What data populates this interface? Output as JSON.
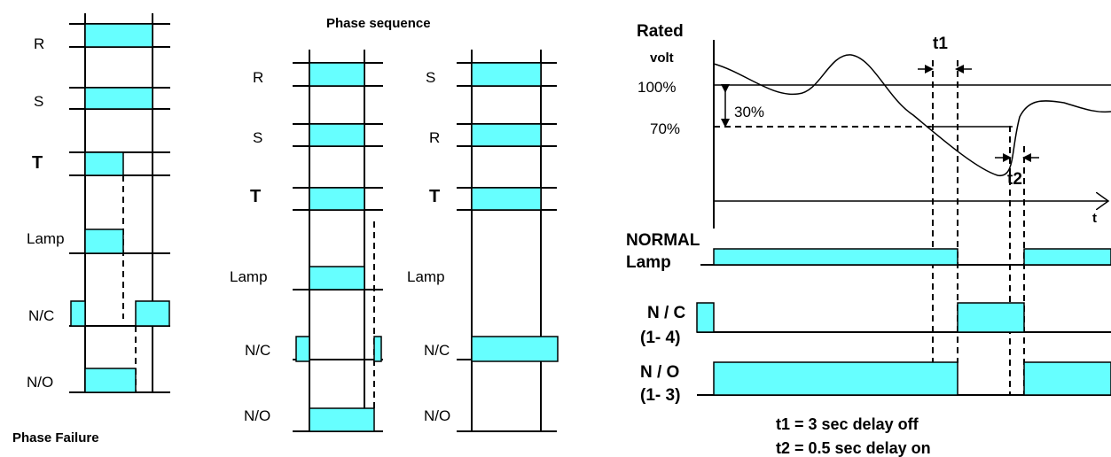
{
  "colors": {
    "pulse_fill": "#66ffff",
    "line": "#000000",
    "background": "#ffffff"
  },
  "phase_failure": {
    "title": "Phase Failure",
    "rows": [
      "R",
      "S",
      "T",
      "Lamp",
      "N/C",
      "N/O"
    ]
  },
  "phase_sequence": {
    "title": "Phase sequence",
    "normal_rows": [
      "R",
      "S",
      "T",
      "Lamp",
      "N/C",
      "N/O"
    ],
    "reversed_rows": [
      "S",
      "R",
      "T",
      "Lamp",
      "N/C",
      "N/O"
    ]
  },
  "voltage_timing": {
    "y_title_line1": "Rated",
    "y_title_line2": "volt",
    "level_100": "100%",
    "level_70": "70%",
    "drop_label": "30%",
    "t1_label": "t1",
    "t2_label": "t2",
    "time_axis_label": "t",
    "lamp_label_line1": "NORMAL",
    "lamp_label_line2": "Lamp",
    "nc_label_line1": "N / C",
    "nc_label_line2": "(1- 4)",
    "no_label_line1": "N / O",
    "no_label_line2": "(1- 3)",
    "note_t1": "t1 = 3 sec delay off",
    "note_t2": "t2 = 0.5 sec delay on"
  }
}
